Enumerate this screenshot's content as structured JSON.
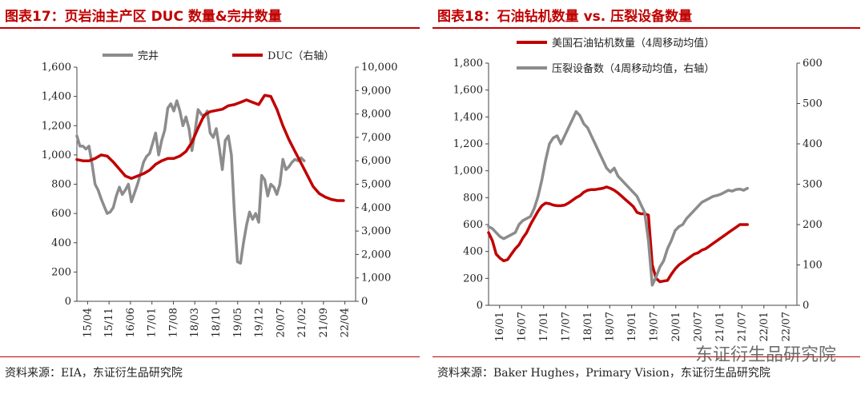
{
  "charts": [
    {
      "title": "图表17：页岩油主产区 DUC 数量&完井数量",
      "source": "资料来源：EIA，东证衍生品研究院"
    },
    {
      "title": "图表18：石油钻机数量 vs. 压裂设备数量",
      "source": "资料来源：Baker Hughes，Primary Vision，东证衍生品研究院"
    }
  ],
  "watermark": "东证衍生品研究院",
  "colors": {
    "red": "#c00000",
    "gray": "#8c8c8c"
  },
  "chart_data": [
    {
      "type": "line",
      "title": "图表17：页岩油主产区 DUC 数量&完井数量",
      "x_tick_labels": [
        "15/04",
        "15/11",
        "16/06",
        "17/01",
        "17/08",
        "18/03",
        "18/10",
        "19/05",
        "19/12",
        "20/07",
        "21/02",
        "21/09",
        "22/04"
      ],
      "ylim_left": [
        0,
        1600
      ],
      "yticks_left": [
        "0",
        "200",
        "400",
        "600",
        "800",
        "1,000",
        "1,200",
        "1,400",
        "1,600"
      ],
      "ylim_right": [
        0,
        10000
      ],
      "yticks_right": [
        "0",
        "1,000",
        "2,000",
        "3,000",
        "4,000",
        "5,000",
        "6,000",
        "7,000",
        "8,000",
        "9,000",
        "10,000"
      ],
      "x_range_months": [
        0,
        92
      ],
      "legend_position": "top",
      "series": [
        {
          "name": "完井",
          "axis": "left",
          "color": "#8c8c8c",
          "points": [
            [
              0,
              1130
            ],
            [
              1,
              1060
            ],
            [
              2,
              1060
            ],
            [
              3,
              1040
            ],
            [
              4,
              1060
            ],
            [
              5,
              940
            ],
            [
              6,
              800
            ],
            [
              7,
              760
            ],
            [
              8,
              700
            ],
            [
              9,
              650
            ],
            [
              10,
              600
            ],
            [
              11,
              610
            ],
            [
              12,
              640
            ],
            [
              13,
              720
            ],
            [
              14,
              780
            ],
            [
              15,
              730
            ],
            [
              16,
              760
            ],
            [
              17,
              800
            ],
            [
              18,
              680
            ],
            [
              19,
              740
            ],
            [
              20,
              800
            ],
            [
              21,
              870
            ],
            [
              22,
              950
            ],
            [
              23,
              990
            ],
            [
              24,
              1010
            ],
            [
              25,
              1080
            ],
            [
              26,
              1150
            ],
            [
              27,
              1000
            ],
            [
              28,
              1100
            ],
            [
              29,
              1170
            ],
            [
              30,
              1320
            ],
            [
              31,
              1350
            ],
            [
              32,
              1300
            ],
            [
              33,
              1370
            ],
            [
              34,
              1300
            ],
            [
              35,
              1200
            ],
            [
              36,
              1260
            ],
            [
              37,
              1180
            ],
            [
              38,
              1030
            ],
            [
              39,
              1160
            ],
            [
              40,
              1310
            ],
            [
              41,
              1280
            ],
            [
              42,
              1260
            ],
            [
              43,
              1300
            ],
            [
              44,
              1150
            ],
            [
              45,
              1120
            ],
            [
              46,
              1180
            ],
            [
              47,
              1050
            ],
            [
              48,
              900
            ],
            [
              49,
              1100
            ],
            [
              50,
              1130
            ],
            [
              51,
              1000
            ],
            [
              52,
              600
            ],
            [
              53,
              270
            ],
            [
              54,
              260
            ],
            [
              55,
              400
            ],
            [
              56,
              520
            ],
            [
              57,
              610
            ],
            [
              58,
              560
            ],
            [
              59,
              600
            ],
            [
              60,
              540
            ],
            [
              61,
              860
            ],
            [
              62,
              830
            ],
            [
              63,
              720
            ],
            [
              64,
              800
            ],
            [
              65,
              780
            ],
            [
              66,
              730
            ],
            [
              67,
              800
            ],
            [
              68,
              970
            ],
            [
              69,
              900
            ],
            [
              70,
              920
            ],
            [
              71,
              950
            ],
            [
              72,
              970
            ],
            [
              73,
              960
            ],
            [
              74,
              980
            ],
            [
              75,
              960
            ]
          ]
        },
        {
          "name": "DUC（右轴）",
          "axis": "right",
          "color": "#c00000",
          "points": [
            [
              0,
              6050
            ],
            [
              2,
              6000
            ],
            [
              4,
              6000
            ],
            [
              6,
              6100
            ],
            [
              8,
              6250
            ],
            [
              10,
              6200
            ],
            [
              12,
              5950
            ],
            [
              14,
              5650
            ],
            [
              16,
              5350
            ],
            [
              18,
              5250
            ],
            [
              20,
              5350
            ],
            [
              22,
              5450
            ],
            [
              24,
              5600
            ],
            [
              26,
              5850
            ],
            [
              28,
              6000
            ],
            [
              30,
              6100
            ],
            [
              32,
              6100
            ],
            [
              34,
              6200
            ],
            [
              36,
              6400
            ],
            [
              38,
              6800
            ],
            [
              40,
              7400
            ],
            [
              42,
              7950
            ],
            [
              44,
              8100
            ],
            [
              46,
              8150
            ],
            [
              48,
              8200
            ],
            [
              50,
              8350
            ],
            [
              52,
              8400
            ],
            [
              54,
              8500
            ],
            [
              56,
              8600
            ],
            [
              58,
              8500
            ],
            [
              60,
              8400
            ],
            [
              62,
              8800
            ],
            [
              64,
              8750
            ],
            [
              66,
              8200
            ],
            [
              68,
              7500
            ],
            [
              70,
              6900
            ],
            [
              72,
              6400
            ],
            [
              74,
              5900
            ],
            [
              76,
              5400
            ],
            [
              78,
              4900
            ],
            [
              80,
              4600
            ],
            [
              82,
              4450
            ],
            [
              84,
              4350
            ],
            [
              86,
              4300
            ],
            [
              88,
              4300
            ]
          ]
        }
      ]
    },
    {
      "type": "line",
      "title": "图表18：石油钻机数量 vs. 压裂设备数量",
      "x_tick_labels": [
        "16/01",
        "16/07",
        "17/01",
        "17/07",
        "18/01",
        "18/07",
        "19/01",
        "19/07",
        "20/01",
        "20/07",
        "21/01",
        "21/07",
        "22/01",
        "22/07"
      ],
      "ylim_left": [
        0,
        1800
      ],
      "yticks_left": [
        "0",
        "200",
        "400",
        "600",
        "800",
        "1,000",
        "1,200",
        "1,400",
        "1,600",
        "1,800"
      ],
      "ylim_right": [
        0,
        600
      ],
      "yticks_right": [
        "0",
        "100",
        "200",
        "300",
        "400",
        "500",
        "600"
      ],
      "x_range_months": [
        0,
        81
      ],
      "legend_position": "top-left",
      "series": [
        {
          "name": "美国石油钻机数量（4周移动均值）",
          "axis": "left",
          "color": "#c00000",
          "points": [
            [
              0,
              540
            ],
            [
              1,
              480
            ],
            [
              2,
              380
            ],
            [
              3,
              350
            ],
            [
              4,
              330
            ],
            [
              5,
              340
            ],
            [
              6,
              380
            ],
            [
              7,
              420
            ],
            [
              8,
              450
            ],
            [
              9,
              500
            ],
            [
              10,
              540
            ],
            [
              11,
              600
            ],
            [
              12,
              650
            ],
            [
              13,
              700
            ],
            [
              14,
              740
            ],
            [
              15,
              760
            ],
            [
              16,
              755
            ],
            [
              17,
              745
            ],
            [
              18,
              740
            ],
            [
              19,
              740
            ],
            [
              20,
              745
            ],
            [
              21,
              760
            ],
            [
              22,
              780
            ],
            [
              23,
              800
            ],
            [
              24,
              815
            ],
            [
              25,
              840
            ],
            [
              26,
              855
            ],
            [
              27,
              860
            ],
            [
              28,
              860
            ],
            [
              29,
              865
            ],
            [
              30,
              870
            ],
            [
              31,
              880
            ],
            [
              32,
              870
            ],
            [
              33,
              855
            ],
            [
              34,
              835
            ],
            [
              35,
              810
            ],
            [
              36,
              785
            ],
            [
              37,
              760
            ],
            [
              38,
              735
            ],
            [
              39,
              690
            ],
            [
              40,
              680
            ],
            [
              41,
              680
            ],
            [
              42,
              670
            ],
            [
              43,
              300
            ],
            [
              44,
              200
            ],
            [
              45,
              175
            ],
            [
              46,
              180
            ],
            [
              47,
              185
            ],
            [
              48,
              230
            ],
            [
              49,
              270
            ],
            [
              50,
              300
            ],
            [
              51,
              320
            ],
            [
              52,
              340
            ],
            [
              53,
              360
            ],
            [
              54,
              380
            ],
            [
              55,
              390
            ],
            [
              56,
              410
            ],
            [
              57,
              420
            ],
            [
              58,
              440
            ],
            [
              59,
              460
            ],
            [
              60,
              480
            ],
            [
              61,
              500
            ],
            [
              62,
              520
            ],
            [
              63,
              540
            ],
            [
              64,
              560
            ],
            [
              65,
              580
            ],
            [
              66,
              600
            ],
            [
              67,
              600
            ],
            [
              68,
              600
            ]
          ]
        },
        {
          "name": "压裂设备数（4周移动均值，右轴）",
          "axis": "right",
          "color": "#8c8c8c",
          "points": [
            [
              0,
              195
            ],
            [
              1,
              190
            ],
            [
              2,
              180
            ],
            [
              3,
              170
            ],
            [
              4,
              165
            ],
            [
              5,
              170
            ],
            [
              6,
              175
            ],
            [
              7,
              180
            ],
            [
              8,
              200
            ],
            [
              9,
              210
            ],
            [
              10,
              215
            ],
            [
              11,
              220
            ],
            [
              12,
              240
            ],
            [
              13,
              270
            ],
            [
              14,
              310
            ],
            [
              15,
              360
            ],
            [
              16,
              400
            ],
            [
              17,
              415
            ],
            [
              18,
              420
            ],
            [
              19,
              400
            ],
            [
              20,
              420
            ],
            [
              21,
              440
            ],
            [
              22,
              460
            ],
            [
              23,
              480
            ],
            [
              24,
              470
            ],
            [
              25,
              450
            ],
            [
              26,
              440
            ],
            [
              27,
              420
            ],
            [
              28,
              400
            ],
            [
              29,
              380
            ],
            [
              30,
              360
            ],
            [
              31,
              340
            ],
            [
              32,
              330
            ],
            [
              33,
              340
            ],
            [
              34,
              320
            ],
            [
              35,
              310
            ],
            [
              36,
              300
            ],
            [
              37,
              290
            ],
            [
              38,
              280
            ],
            [
              39,
              270
            ],
            [
              40,
              250
            ],
            [
              41,
              230
            ],
            [
              42,
              160
            ],
            [
              43,
              50
            ],
            [
              44,
              70
            ],
            [
              45,
              95
            ],
            [
              46,
              110
            ],
            [
              47,
              140
            ],
            [
              48,
              160
            ],
            [
              49,
              185
            ],
            [
              50,
              195
            ],
            [
              51,
              200
            ],
            [
              52,
              215
            ],
            [
              53,
              225
            ],
            [
              54,
              235
            ],
            [
              55,
              245
            ],
            [
              56,
              255
            ],
            [
              57,
              260
            ],
            [
              58,
              265
            ],
            [
              59,
              270
            ],
            [
              60,
              272
            ],
            [
              61,
              275
            ],
            [
              62,
              280
            ],
            [
              63,
              285
            ],
            [
              64,
              283
            ],
            [
              65,
              287
            ],
            [
              66,
              288
            ],
            [
              67,
              285
            ],
            [
              68,
              290
            ]
          ]
        }
      ]
    }
  ]
}
